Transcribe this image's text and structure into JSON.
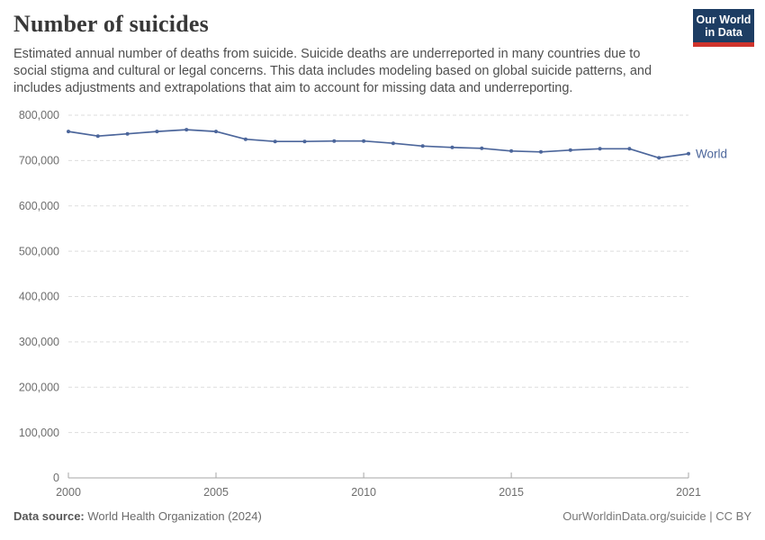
{
  "header": {
    "title": "Number of suicides",
    "subtitle": "Estimated annual number of deaths from suicide. Suicide deaths are underreported in many countries due to social stigma and cultural or legal concerns. This data includes modeling based on global suicide patterns, and includes adjustments and extrapolations that aim to account for missing data and underreporting.",
    "logo": {
      "line1": "Our World",
      "line2": "in Data"
    }
  },
  "chart_data": {
    "type": "line",
    "title": "Number of suicides",
    "xlabel": "",
    "ylabel": "",
    "xlim": [
      2000,
      2021
    ],
    "ylim": [
      0,
      800000
    ],
    "x_ticks": [
      2000,
      2005,
      2010,
      2015,
      2021
    ],
    "y_ticks": [
      0,
      100000,
      200000,
      300000,
      400000,
      500000,
      600000,
      700000,
      800000
    ],
    "grid": "horizontal-dashed",
    "legend_position": "end-of-line",
    "series": [
      {
        "name": "World",
        "color": "#4c669b",
        "x": [
          2000,
          2001,
          2002,
          2003,
          2004,
          2005,
          2006,
          2007,
          2008,
          2009,
          2010,
          2011,
          2012,
          2013,
          2014,
          2015,
          2016,
          2017,
          2018,
          2019,
          2020,
          2021
        ],
        "values": [
          764000,
          754000,
          759000,
          764000,
          768000,
          764000,
          747000,
          742000,
          742000,
          743000,
          743000,
          738000,
          732000,
          729000,
          727000,
          721000,
          719000,
          723000,
          726000,
          726000,
          706000,
          715000
        ]
      }
    ]
  },
  "footer": {
    "source_label": "Data source:",
    "source_value": "World Health Organization (2024)",
    "credit": "OurWorldinData.org/suicide | CC BY"
  },
  "colors": {
    "line": "#4c669b",
    "grid": "#dddddd",
    "axis": "#a7a7a7",
    "tick_label": "#6e6e6e",
    "logo_bg": "#1d3d63",
    "logo_stripe": "#cf342c",
    "title_text": "#383838",
    "subtitle_text": "#4f4f4f"
  }
}
